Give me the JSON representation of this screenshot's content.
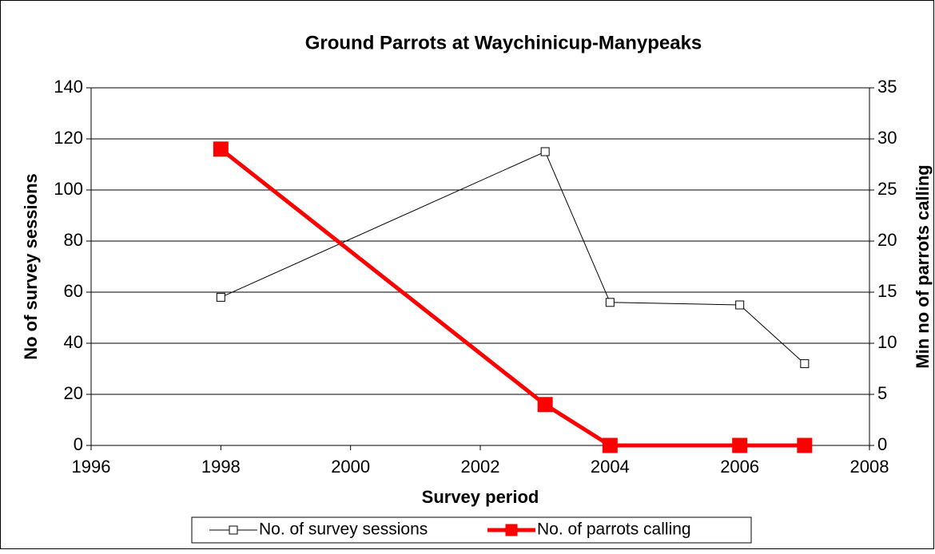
{
  "chart_data": {
    "type": "line",
    "title": "Ground Parrots at Waychinicup-Manypeaks",
    "x_label": "Survey period",
    "y_label": "No of survey sessions",
    "y2_label": "Min no of parrots calling",
    "x": [
      1998,
      2003,
      2004,
      2006,
      2007
    ],
    "xlim": [
      1996,
      2008
    ],
    "xticks": [
      1996,
      1998,
      2000,
      2002,
      2004,
      2006,
      2008
    ],
    "ylim": [
      0,
      140
    ],
    "yticks": [
      0,
      20,
      40,
      60,
      80,
      100,
      120,
      140
    ],
    "y2lim": [
      0,
      35
    ],
    "y2ticks": [
      0,
      5,
      10,
      15,
      20,
      25,
      30,
      35
    ],
    "grid": true,
    "series": [
      {
        "name": "No. of survey sessions",
        "color": "#000000",
        "values": [
          58,
          115,
          56,
          55,
          32
        ]
      },
      {
        "name": "No. of parrots calling",
        "color": "#ff0000",
        "axis": "y2",
        "values": [
          29,
          4,
          0,
          0,
          0
        ]
      }
    ]
  }
}
